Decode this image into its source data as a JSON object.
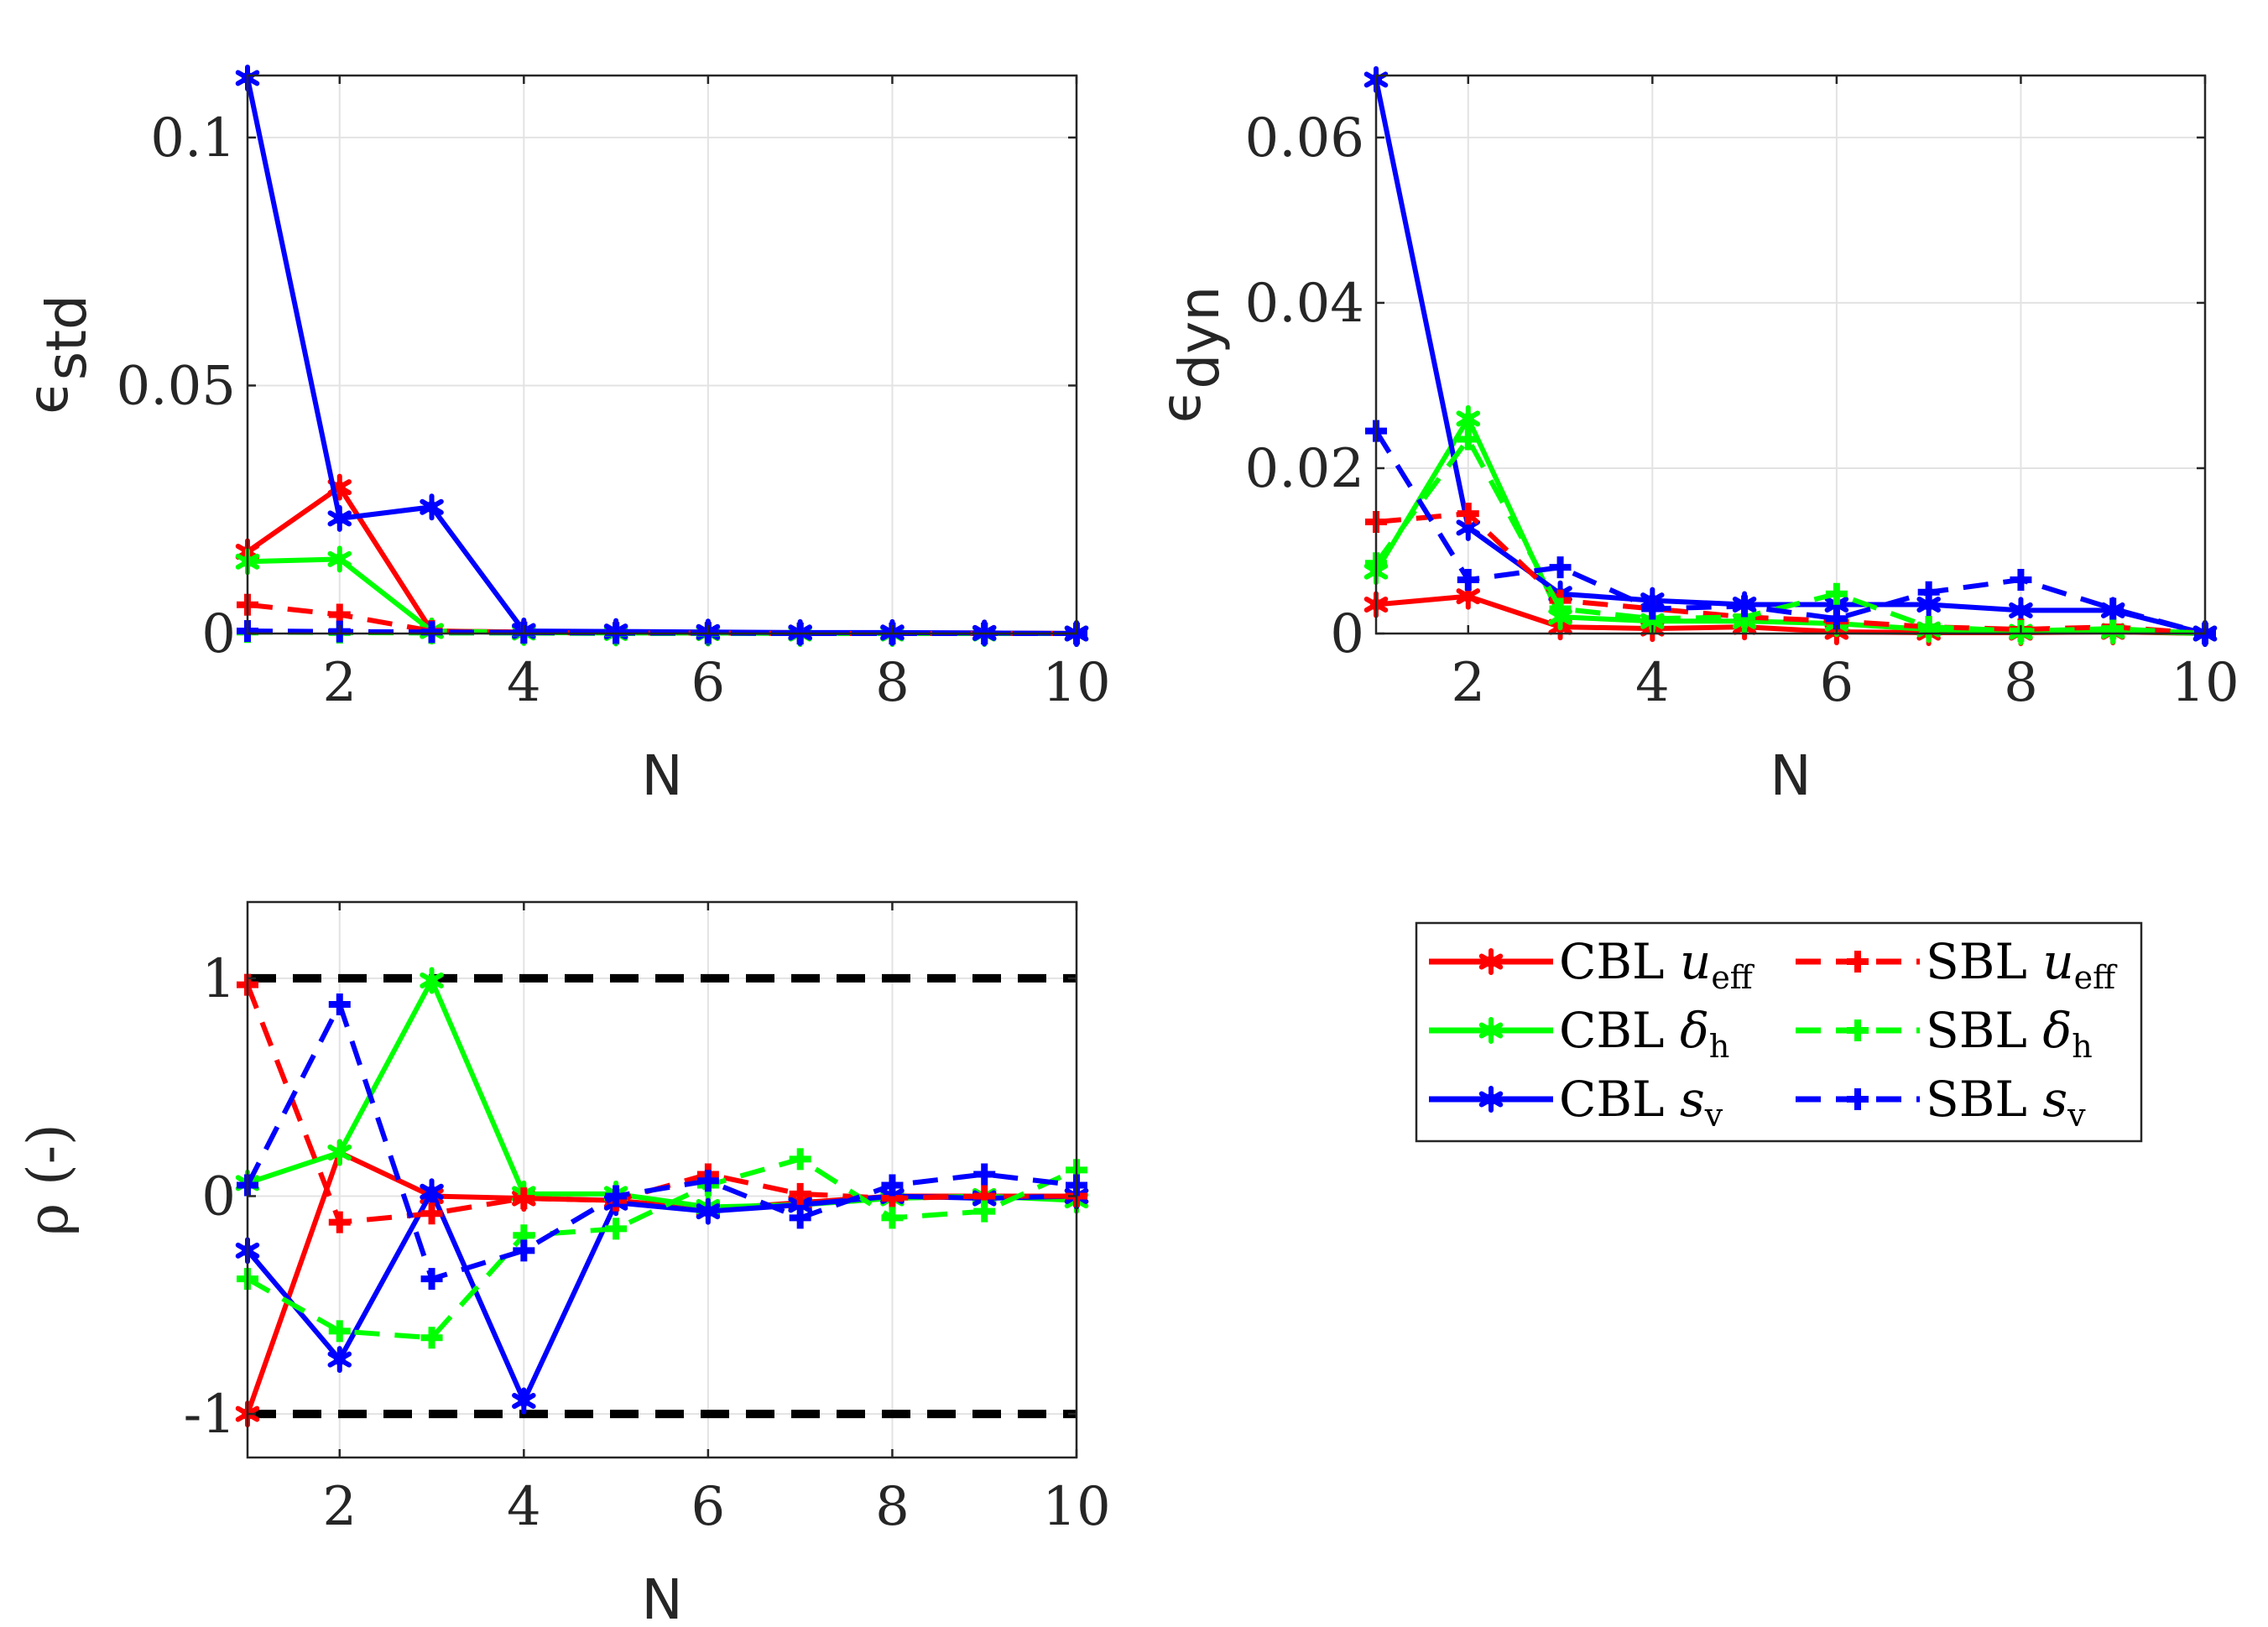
{
  "chart_data": [
    {
      "type": "line",
      "panel": "top-left",
      "xlabel": "N",
      "ylabel_main": "ϵ",
      "ylabel_sub": "std",
      "xlim": [
        1,
        10
      ],
      "ylim": [
        0,
        0.1125
      ],
      "xticks": [
        2,
        4,
        6,
        8,
        10
      ],
      "xtick_labels": [
        "2",
        "4",
        "6",
        "8",
        "10"
      ],
      "yticks": [
        0,
        0.05,
        0.1
      ],
      "ytick_labels": [
        "0",
        "0.05",
        "0.1"
      ],
      "x": [
        1,
        2,
        3,
        4,
        5,
        6,
        7,
        8,
        9,
        10
      ],
      "series": [
        {
          "name": "CBL u_eff",
          "color": "#ff0000",
          "style": "solid",
          "marker": "asterisk",
          "values": [
            0.0165,
            0.0295,
            0.0005,
            0.0003,
            0.0002,
            0.0001,
            0.0001,
            0.0001,
            0.0001,
            0.0
          ]
        },
        {
          "name": "CBL δ_h",
          "color": "#00ff00",
          "style": "solid",
          "marker": "asterisk",
          "values": [
            0.0145,
            0.015,
            0.0005,
            0.0002,
            0.0001,
            0.0001,
            0.0,
            0.0,
            0.0,
            0.0
          ]
        },
        {
          "name": "CBL s_v",
          "color": "#0000ff",
          "style": "solid",
          "marker": "asterisk",
          "values": [
            0.112,
            0.0232,
            0.0255,
            0.0005,
            0.0004,
            0.0003,
            0.0002,
            0.0002,
            0.0001,
            0.0
          ]
        },
        {
          "name": "SBL u_eff",
          "color": "#ff0000",
          "style": "dashed",
          "marker": "plus",
          "values": [
            0.0058,
            0.0038,
            0.0005,
            0.0002,
            0.0001,
            0.0001,
            0.0,
            0.0,
            0.0,
            0.0
          ]
        },
        {
          "name": "SBL δ_h",
          "color": "#00ff00",
          "style": "dashed",
          "marker": "plus",
          "values": [
            0.0003,
            0.0002,
            0.0001,
            0.0001,
            0.0,
            0.0,
            0.0,
            0.0,
            0.0,
            0.0
          ]
        },
        {
          "name": "SBL s_v",
          "color": "#0000ff",
          "style": "dashed",
          "marker": "plus",
          "values": [
            0.0005,
            0.0004,
            0.0003,
            0.0002,
            0.0001,
            0.0001,
            0.0,
            0.0,
            0.0,
            0.0
          ]
        }
      ]
    },
    {
      "type": "line",
      "panel": "top-right",
      "xlabel": "N",
      "ylabel_main": "ϵ",
      "ylabel_sub": "dyn",
      "xlim": [
        1,
        10
      ],
      "ylim": [
        0,
        0.0675
      ],
      "xticks": [
        2,
        4,
        6,
        8,
        10
      ],
      "xtick_labels": [
        "2",
        "4",
        "6",
        "8",
        "10"
      ],
      "yticks": [
        0,
        0.02,
        0.04,
        0.06
      ],
      "ytick_labels": [
        "0",
        "0.02",
        "0.04",
        "0.06"
      ],
      "x": [
        1,
        2,
        3,
        4,
        5,
        6,
        7,
        8,
        9,
        10
      ],
      "series": [
        {
          "name": "CBL u_eff",
          "color": "#ff0000",
          "style": "solid",
          "marker": "asterisk",
          "values": [
            0.0035,
            0.0045,
            0.0008,
            0.0006,
            0.0008,
            0.0002,
            0.0001,
            0.0001,
            0.0002,
            0.0
          ]
        },
        {
          "name": "CBL δ_h",
          "color": "#00ff00",
          "style": "solid",
          "marker": "asterisk",
          "values": [
            0.0075,
            0.026,
            0.002,
            0.0015,
            0.0015,
            0.0012,
            0.0005,
            0.0002,
            0.0003,
            0.0
          ]
        },
        {
          "name": "CBL s_v",
          "color": "#0000ff",
          "style": "solid",
          "marker": "asterisk",
          "values": [
            0.067,
            0.0128,
            0.0048,
            0.004,
            0.0035,
            0.0035,
            0.0035,
            0.0028,
            0.0028,
            0.0
          ]
        },
        {
          "name": "SBL u_eff",
          "color": "#ff0000",
          "style": "dashed",
          "marker": "plus",
          "values": [
            0.0135,
            0.0145,
            0.004,
            0.003,
            0.002,
            0.0015,
            0.0008,
            0.0005,
            0.0008,
            0.0
          ]
        },
        {
          "name": "SBL δ_h",
          "color": "#00ff00",
          "style": "dashed",
          "marker": "plus",
          "values": [
            0.0085,
            0.0235,
            0.003,
            0.0018,
            0.002,
            0.0048,
            0.0008,
            0.0003,
            0.0006,
            0.0
          ]
        },
        {
          "name": "SBL s_v",
          "color": "#0000ff",
          "style": "dashed",
          "marker": "plus",
          "values": [
            0.0245,
            0.0065,
            0.008,
            0.003,
            0.0033,
            0.0018,
            0.005,
            0.0065,
            0.003,
            0.0
          ]
        }
      ]
    },
    {
      "type": "line",
      "panel": "bottom-left",
      "xlabel": "N",
      "ylabel_main": "ρ (-)",
      "xlim": [
        1,
        10
      ],
      "ylim": [
        -1.2,
        1.35
      ],
      "xticks": [
        2,
        4,
        6,
        8,
        10
      ],
      "xtick_labels": [
        "2",
        "4",
        "6",
        "8",
        "10"
      ],
      "yticks": [
        -1,
        0,
        1
      ],
      "ytick_labels": [
        "-1",
        "0",
        "1"
      ],
      "reference_lines": [
        1,
        -1
      ],
      "x": [
        1,
        2,
        3,
        4,
        5,
        6,
        7,
        8,
        9,
        10
      ],
      "series": [
        {
          "name": "CBL u_eff",
          "color": "#ff0000",
          "style": "solid",
          "marker": "asterisk",
          "values": [
            -1.0,
            0.2,
            0.0,
            -0.01,
            -0.02,
            -0.06,
            -0.03,
            0.0,
            0.0,
            0.0
          ]
        },
        {
          "name": "CBL δ_h",
          "color": "#00ff00",
          "style": "solid",
          "marker": "asterisk",
          "values": [
            0.06,
            0.2,
            0.99,
            0.01,
            0.01,
            -0.05,
            -0.04,
            -0.01,
            0.0,
            -0.02
          ]
        },
        {
          "name": "CBL s_v",
          "color": "#0000ff",
          "style": "solid",
          "marker": "asterisk",
          "values": [
            -0.25,
            -0.75,
            0.02,
            -0.94,
            -0.03,
            -0.07,
            -0.04,
            0.0,
            -0.01,
            0.0
          ]
        },
        {
          "name": "SBL u_eff",
          "color": "#ff0000",
          "style": "dashed",
          "marker": "plus",
          "values": [
            0.97,
            -0.12,
            -0.08,
            -0.01,
            -0.02,
            0.1,
            0.01,
            -0.01,
            0.0,
            0.0
          ]
        },
        {
          "name": "SBL δ_h",
          "color": "#00ff00",
          "style": "dashed",
          "marker": "plus",
          "values": [
            -0.38,
            -0.62,
            -0.65,
            -0.18,
            -0.15,
            0.05,
            0.17,
            -0.1,
            -0.07,
            0.12
          ]
        },
        {
          "name": "SBL s_v",
          "color": "#0000ff",
          "style": "dashed",
          "marker": "plus",
          "values": [
            0.05,
            0.88,
            -0.38,
            -0.25,
            0.0,
            0.07,
            -0.1,
            0.05,
            0.1,
            0.05
          ]
        }
      ]
    }
  ],
  "legend": {
    "items": [
      {
        "prefix": "CBL ",
        "sym": "u",
        "sub": "eff",
        "color": "#ff0000",
        "style": "solid",
        "marker": "asterisk"
      },
      {
        "prefix": "SBL ",
        "sym": "u",
        "sub": "eff",
        "color": "#ff0000",
        "style": "dashed",
        "marker": "plus"
      },
      {
        "prefix": "CBL ",
        "sym": "δ",
        "sub": "h",
        "color": "#00ff00",
        "style": "solid",
        "marker": "asterisk"
      },
      {
        "prefix": "SBL ",
        "sym": "δ",
        "sub": "h",
        "color": "#00ff00",
        "style": "dashed",
        "marker": "plus"
      },
      {
        "prefix": "CBL ",
        "sym": "s",
        "sub": "v",
        "color": "#0000ff",
        "style": "solid",
        "marker": "asterisk"
      },
      {
        "prefix": "SBL ",
        "sym": "s",
        "sub": "v",
        "color": "#0000ff",
        "style": "dashed",
        "marker": "plus"
      }
    ]
  }
}
